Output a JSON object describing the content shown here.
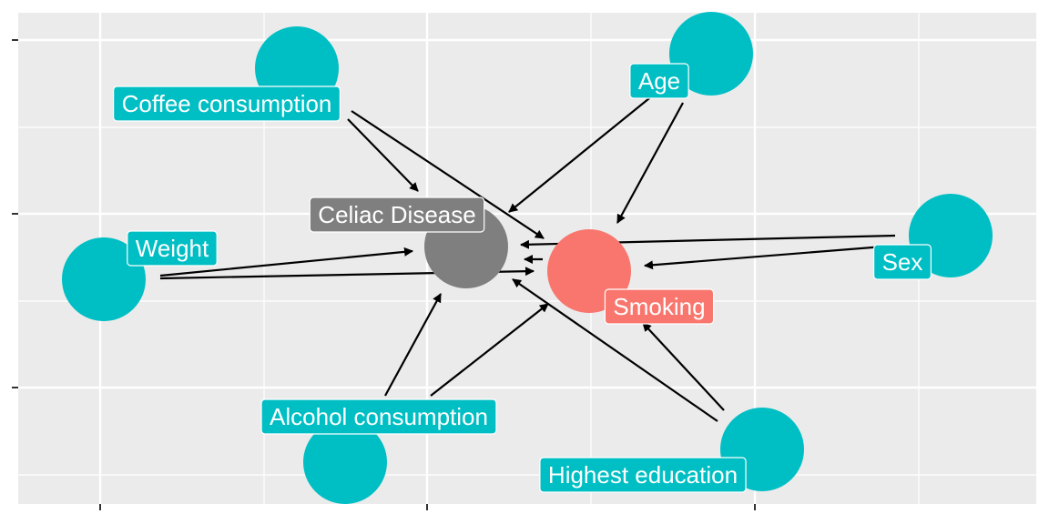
{
  "colors": {
    "panel": "#EBEBEB",
    "grid": "#FFFFFF",
    "exposure": "#F8766D",
    "outcome": "#7F7F7F",
    "covariate": "#00BFC4",
    "edge": "#000000",
    "label_text": "#FFFFFF"
  },
  "nodes": [
    {
      "id": "celiac",
      "label": "Celiac Disease",
      "role": "outcome"
    },
    {
      "id": "smoking",
      "label": "Smoking",
      "role": "exposure"
    },
    {
      "id": "coffee",
      "label": "Coffee consumption",
      "role": "covariate"
    },
    {
      "id": "age",
      "label": "Age",
      "role": "covariate"
    },
    {
      "id": "sex",
      "label": "Sex",
      "role": "covariate"
    },
    {
      "id": "weight",
      "label": "Weight",
      "role": "covariate"
    },
    {
      "id": "alcohol",
      "label": "Alcohol consumption",
      "role": "covariate"
    },
    {
      "id": "education",
      "label": "Highest  education",
      "role": "covariate"
    }
  ],
  "edges": [
    {
      "from": "coffee",
      "to": "smoking"
    },
    {
      "from": "coffee",
      "to": "celiac"
    },
    {
      "from": "age",
      "to": "celiac"
    },
    {
      "from": "age",
      "to": "smoking"
    },
    {
      "from": "sex",
      "to": "celiac"
    },
    {
      "from": "sex",
      "to": "smoking"
    },
    {
      "from": "weight",
      "to": "celiac"
    },
    {
      "from": "weight",
      "to": "smoking"
    },
    {
      "from": "alcohol",
      "to": "celiac"
    },
    {
      "from": "alcohol",
      "to": "smoking"
    },
    {
      "from": "education",
      "to": "celiac"
    },
    {
      "from": "education",
      "to": "smoking"
    },
    {
      "from": "smoking",
      "to": "celiac"
    }
  ]
}
